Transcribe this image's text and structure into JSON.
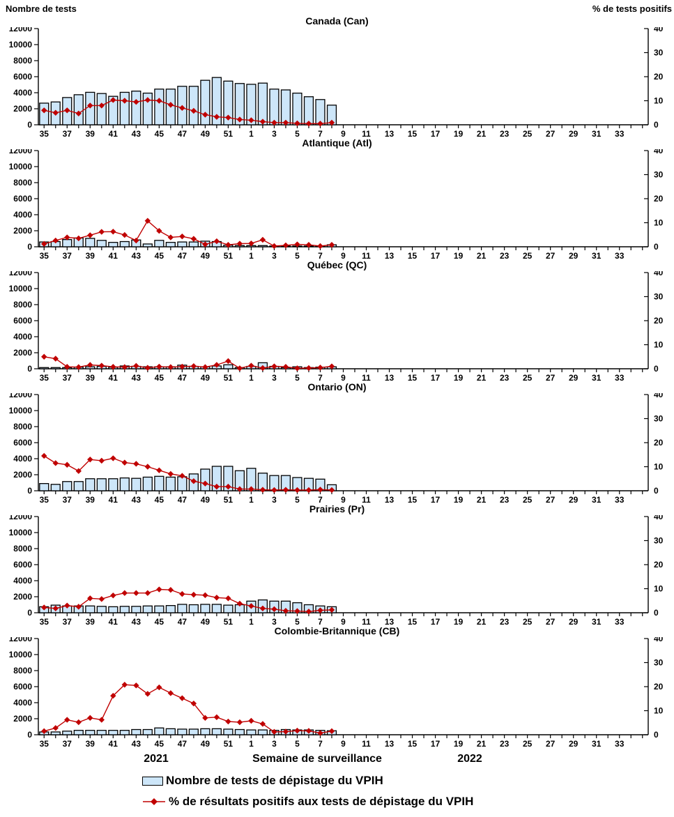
{
  "figure": {
    "left_axis_title": "Nombre de tests",
    "right_axis_title": "% de tests positifs",
    "x_axis_label": "Semaine de surveillance",
    "year_left": "2021",
    "year_right": "2022"
  },
  "legend": {
    "bars_label": "Nombre de tests de dépistage du VPIH",
    "line_label": "% de résultats positifs aux tests de dépistage du VPIH"
  },
  "colors": {
    "bar_fill": "#CDE6F9",
    "bar_stroke": "#000000",
    "line_color": "#C00000"
  },
  "axes": {
    "left_ticks": [
      0,
      2000,
      4000,
      6000,
      8000,
      10000,
      12000
    ],
    "right_ticks": [
      0,
      10,
      20,
      30,
      40
    ],
    "left_max": 12000,
    "right_max": 40,
    "weeks_full": [
      35,
      36,
      37,
      38,
      39,
      40,
      41,
      42,
      43,
      44,
      45,
      46,
      47,
      48,
      49,
      50,
      51,
      52,
      1,
      2,
      3,
      4,
      5,
      6,
      7,
      8,
      9,
      10,
      11,
      12,
      13,
      14,
      15,
      16,
      17,
      18,
      19,
      20,
      21,
      22,
      23,
      24,
      25,
      26,
      27,
      28,
      29,
      30,
      31,
      32,
      33,
      34
    ],
    "labeled_weeks": "odd weeks only"
  },
  "chart_data": [
    {
      "type": "bar+line",
      "title": "Canada (Can)",
      "code": "can",
      "weeks": [
        35,
        36,
        37,
        38,
        39,
        40,
        41,
        42,
        43,
        44,
        45,
        46,
        47,
        48,
        49,
        50,
        51,
        52,
        1,
        2,
        3,
        4,
        5,
        6,
        7,
        8
      ],
      "bars_tests": [
        2700,
        2850,
        3400,
        3750,
        4050,
        3900,
        3550,
        4050,
        4200,
        3950,
        4450,
        4450,
        4800,
        4800,
        5550,
        5900,
        5450,
        5150,
        5050,
        5200,
        4450,
        4350,
        3950,
        3500,
        3150,
        2450
      ],
      "line_pct_positive": [
        6.0,
        5.0,
        6.0,
        4.7,
        8.0,
        8.0,
        10.3,
        10.0,
        9.5,
        10.3,
        10.0,
        8.3,
        7.0,
        5.8,
        4.2,
        3.3,
        3.0,
        2.2,
        1.9,
        1.3,
        0.9,
        0.9,
        0.6,
        0.5,
        0.5,
        0.9
      ]
    },
    {
      "type": "bar+line",
      "title": "Atlantique (Atl)",
      "code": "atl",
      "weeks": [
        35,
        36,
        37,
        38,
        39,
        40,
        41,
        42,
        43,
        44,
        45,
        46,
        47,
        48,
        49,
        50,
        51,
        52,
        1,
        2,
        3,
        4,
        5,
        6,
        7,
        8
      ],
      "bars_tests": [
        600,
        650,
        900,
        1100,
        1050,
        800,
        550,
        650,
        850,
        350,
        800,
        550,
        600,
        600,
        700,
        650,
        200,
        150,
        150,
        150,
        100,
        100,
        100,
        100,
        100,
        250
      ],
      "line_pct_positive": [
        1.2,
        2.6,
        3.9,
        3.5,
        4.8,
        6.2,
        6.3,
        4.9,
        2.6,
        10.8,
        6.6,
        3.9,
        4.3,
        3.3,
        1.0,
        2.3,
        0.8,
        1.3,
        1.4,
        2.9,
        0.3,
        0.6,
        1.0,
        0.8,
        0.3,
        0.8
      ]
    },
    {
      "type": "bar+line",
      "title": "Québec (QC)",
      "code": "qc",
      "weeks": [
        35,
        36,
        37,
        38,
        39,
        40,
        41,
        42,
        43,
        44,
        45,
        46,
        47,
        48,
        49,
        50,
        51,
        52,
        1,
        2,
        3,
        4,
        5,
        6,
        7,
        8
      ],
      "bars_tests": [
        150,
        150,
        150,
        200,
        250,
        300,
        200,
        350,
        300,
        250,
        250,
        250,
        450,
        300,
        250,
        350,
        500,
        150,
        300,
        750,
        300,
        150,
        250,
        150,
        200,
        250
      ],
      "line_pct_positive": [
        5.0,
        4.2,
        0.8,
        0.7,
        1.6,
        1.3,
        0.8,
        0.7,
        1.2,
        0.4,
        0.9,
        0.7,
        0.9,
        1.1,
        0.7,
        1.6,
        3.2,
        0.2,
        1.3,
        0.3,
        1.0,
        0.8,
        0.2,
        0.3,
        0.5,
        1.0
      ]
    },
    {
      "type": "bar+line",
      "title": "Ontario (ON)",
      "code": "on",
      "weeks": [
        35,
        36,
        37,
        38,
        39,
        40,
        41,
        42,
        43,
        44,
        45,
        46,
        47,
        48,
        49,
        50,
        51,
        52,
        1,
        2,
        3,
        4,
        5,
        6,
        7,
        8
      ],
      "bars_tests": [
        900,
        800,
        1150,
        1150,
        1500,
        1500,
        1500,
        1600,
        1550,
        1700,
        1800,
        1700,
        1750,
        2100,
        2700,
        3050,
        3050,
        2500,
        2800,
        2200,
        1900,
        1900,
        1650,
        1550,
        1450,
        750
      ],
      "line_pct_positive": [
        14.5,
        11.5,
        10.8,
        8.2,
        13.0,
        12.5,
        13.5,
        11.7,
        11.2,
        10.0,
        8.5,
        7.0,
        6.2,
        4.0,
        3.0,
        1.7,
        1.7,
        0.7,
        0.7,
        0.4,
        0.3,
        0.4,
        0.3,
        0.3,
        0.5,
        0.3
      ]
    },
    {
      "type": "bar+line",
      "title": "Prairies (Pr)",
      "code": "pr",
      "weeks": [
        35,
        36,
        37,
        38,
        39,
        40,
        41,
        42,
        43,
        44,
        45,
        46,
        47,
        48,
        49,
        50,
        51,
        52,
        1,
        2,
        3,
        4,
        5,
        6,
        7,
        8
      ],
      "bars_tests": [
        750,
        950,
        850,
        850,
        850,
        800,
        750,
        800,
        800,
        850,
        850,
        900,
        1050,
        1000,
        1050,
        1050,
        950,
        1000,
        1450,
        1600,
        1450,
        1450,
        1250,
        1000,
        850,
        750
      ],
      "line_pct_positive": [
        2.2,
        1.8,
        3.0,
        2.5,
        6.0,
        5.7,
        7.2,
        8.2,
        8.2,
        8.2,
        9.7,
        9.5,
        7.8,
        7.5,
        7.3,
        6.3,
        6.0,
        3.8,
        2.8,
        1.8,
        1.5,
        0.8,
        0.7,
        0.5,
        1.0,
        1.2
      ]
    },
    {
      "type": "bar+line",
      "title": "Colombie-Britannique (CB)",
      "code": "cb",
      "weeks": [
        35,
        36,
        37,
        38,
        39,
        40,
        41,
        42,
        43,
        44,
        45,
        46,
        47,
        48,
        49,
        50,
        51,
        52,
        1,
        2,
        3,
        4,
        5,
        6,
        7,
        8
      ],
      "bars_tests": [
        350,
        350,
        450,
        550,
        550,
        550,
        550,
        550,
        650,
        650,
        850,
        750,
        700,
        700,
        750,
        750,
        700,
        650,
        600,
        600,
        550,
        650,
        600,
        600,
        550,
        500
      ],
      "line_pct_positive": [
        1.5,
        2.8,
        6.2,
        5.2,
        7.0,
        6.2,
        16.2,
        20.8,
        20.5,
        17.0,
        19.7,
        17.3,
        15.2,
        13.0,
        7.0,
        7.3,
        5.5,
        5.2,
        5.8,
        4.5,
        1.2,
        1.3,
        1.7,
        1.6,
        0.7,
        1.5
      ]
    }
  ]
}
